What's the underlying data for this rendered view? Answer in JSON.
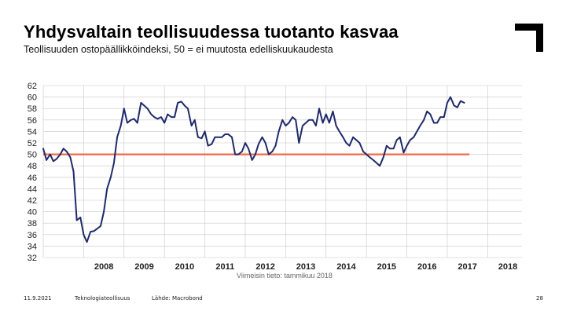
{
  "slide": {
    "title": "Yhdysvaltain teollisuudessa tuotanto kasvaa",
    "subtitle": "Teollisuuden ostopäällikköindeksi, 50 = ei muutosta edelliskuukaudesta",
    "logo_icon": "corner-bracket-logo",
    "footer": {
      "date": "11.9.2021",
      "org": "Teknologiateollisuus",
      "source": "Lähde: Macrobond",
      "page": "28"
    }
  },
  "chart_data": {
    "type": "line",
    "title": "",
    "xlabel": "",
    "ylabel": "",
    "note": "Viimeisin tieto: tammikuu 2018",
    "ylim": [
      32,
      62
    ],
    "y_ticks": [
      32,
      34,
      36,
      38,
      40,
      42,
      44,
      46,
      48,
      50,
      52,
      54,
      56,
      58,
      60,
      62
    ],
    "xlim": [
      2007.0,
      2018.85
    ],
    "x_ticks": [
      "2008",
      "2009",
      "2010",
      "2011",
      "2012",
      "2013",
      "2014",
      "2015",
      "2016",
      "2017",
      "2018"
    ],
    "grid": true,
    "series": [
      {
        "color": "#1f2a6b",
        "points": [
          [
            2007.0,
            51.0
          ],
          [
            2007.08,
            49.0
          ],
          [
            2007.17,
            50.0
          ],
          [
            2007.25,
            48.8
          ],
          [
            2007.33,
            49.2
          ],
          [
            2007.42,
            50.0
          ],
          [
            2007.5,
            51.0
          ],
          [
            2007.58,
            50.5
          ],
          [
            2007.67,
            49.5
          ],
          [
            2007.75,
            47.0
          ],
          [
            2007.83,
            38.5
          ],
          [
            2007.92,
            39.0
          ],
          [
            2008.0,
            36.0
          ],
          [
            2008.08,
            34.7
          ],
          [
            2008.17,
            36.5
          ],
          [
            2008.25,
            36.6
          ],
          [
            2008.33,
            37.0
          ],
          [
            2008.42,
            37.5
          ],
          [
            2008.5,
            40.0
          ],
          [
            2008.58,
            44.0
          ],
          [
            2008.67,
            46.0
          ],
          [
            2008.75,
            48.5
          ],
          [
            2008.83,
            53.0
          ],
          [
            2008.92,
            55.0
          ],
          [
            2009.0,
            58.0
          ],
          [
            2009.08,
            55.5
          ],
          [
            2009.17,
            56.0
          ],
          [
            2009.25,
            56.2
          ],
          [
            2009.33,
            55.5
          ],
          [
            2009.42,
            59.0
          ],
          [
            2009.5,
            58.5
          ],
          [
            2009.58,
            58.0
          ],
          [
            2009.67,
            57.0
          ],
          [
            2009.75,
            56.5
          ],
          [
            2009.83,
            56.2
          ],
          [
            2009.92,
            56.5
          ],
          [
            2010.0,
            55.5
          ],
          [
            2010.08,
            57.0
          ],
          [
            2010.17,
            56.5
          ],
          [
            2010.25,
            56.5
          ],
          [
            2010.33,
            59.0
          ],
          [
            2010.42,
            59.2
          ],
          [
            2010.5,
            58.5
          ],
          [
            2010.58,
            58.0
          ],
          [
            2010.67,
            55.0
          ],
          [
            2010.75,
            56.0
          ],
          [
            2010.83,
            53.0
          ],
          [
            2010.92,
            52.8
          ],
          [
            2011.0,
            54.0
          ],
          [
            2011.08,
            51.5
          ],
          [
            2011.17,
            51.8
          ],
          [
            2011.25,
            53.0
          ],
          [
            2011.33,
            53.0
          ],
          [
            2011.42,
            53.0
          ],
          [
            2011.5,
            53.5
          ],
          [
            2011.58,
            53.5
          ],
          [
            2011.67,
            53.0
          ],
          [
            2011.75,
            50.0
          ],
          [
            2011.83,
            50.0
          ],
          [
            2011.92,
            50.5
          ],
          [
            2012.0,
            52.0
          ],
          [
            2012.08,
            51.0
          ],
          [
            2012.17,
            49.0
          ],
          [
            2012.25,
            50.0
          ],
          [
            2012.33,
            51.8
          ],
          [
            2012.42,
            53.0
          ],
          [
            2012.5,
            52.0
          ],
          [
            2012.58,
            50.0
          ],
          [
            2012.67,
            50.5
          ],
          [
            2012.75,
            51.5
          ],
          [
            2012.83,
            54.0
          ],
          [
            2012.92,
            56.0
          ],
          [
            2013.0,
            55.0
          ],
          [
            2013.08,
            55.5
          ],
          [
            2013.17,
            56.5
          ],
          [
            2013.25,
            56.0
          ],
          [
            2013.33,
            52.0
          ],
          [
            2013.42,
            55.0
          ],
          [
            2013.5,
            55.5
          ],
          [
            2013.58,
            56.0
          ],
          [
            2013.67,
            56.0
          ],
          [
            2013.75,
            55.0
          ],
          [
            2013.83,
            58.0
          ],
          [
            2013.92,
            55.5
          ],
          [
            2014.0,
            57.0
          ],
          [
            2014.08,
            55.5
          ],
          [
            2014.17,
            57.5
          ],
          [
            2014.25,
            55.0
          ],
          [
            2014.33,
            54.0
          ],
          [
            2014.42,
            53.0
          ],
          [
            2014.5,
            52.0
          ],
          [
            2014.58,
            51.5
          ],
          [
            2014.67,
            53.0
          ],
          [
            2014.75,
            52.5
          ],
          [
            2014.83,
            52.0
          ],
          [
            2014.92,
            50.5
          ],
          [
            2015.0,
            50.0
          ],
          [
            2015.08,
            49.5
          ],
          [
            2015.17,
            49.0
          ],
          [
            2015.25,
            48.5
          ],
          [
            2015.33,
            48.0
          ],
          [
            2015.42,
            49.5
          ],
          [
            2015.5,
            51.5
          ],
          [
            2015.58,
            51.0
          ],
          [
            2015.67,
            51.0
          ],
          [
            2015.75,
            52.5
          ],
          [
            2015.83,
            53.0
          ],
          [
            2015.92,
            50.3
          ],
          [
            2016.0,
            51.5
          ],
          [
            2016.08,
            52.5
          ],
          [
            2016.17,
            53.0
          ],
          [
            2016.25,
            54.0
          ],
          [
            2016.33,
            55.0
          ],
          [
            2016.42,
            56.0
          ],
          [
            2016.5,
            57.5
          ],
          [
            2016.58,
            57.0
          ],
          [
            2016.67,
            55.5
          ],
          [
            2016.75,
            55.5
          ],
          [
            2016.83,
            56.5
          ],
          [
            2016.92,
            56.5
          ],
          [
            2017.0,
            59.0
          ],
          [
            2017.08,
            60.0
          ],
          [
            2017.17,
            58.5
          ],
          [
            2017.25,
            58.2
          ],
          [
            2017.33,
            59.3
          ],
          [
            2017.42,
            59.0
          ]
        ]
      }
    ],
    "reference_line": {
      "y": 50,
      "color": "#f06a4a"
    }
  }
}
